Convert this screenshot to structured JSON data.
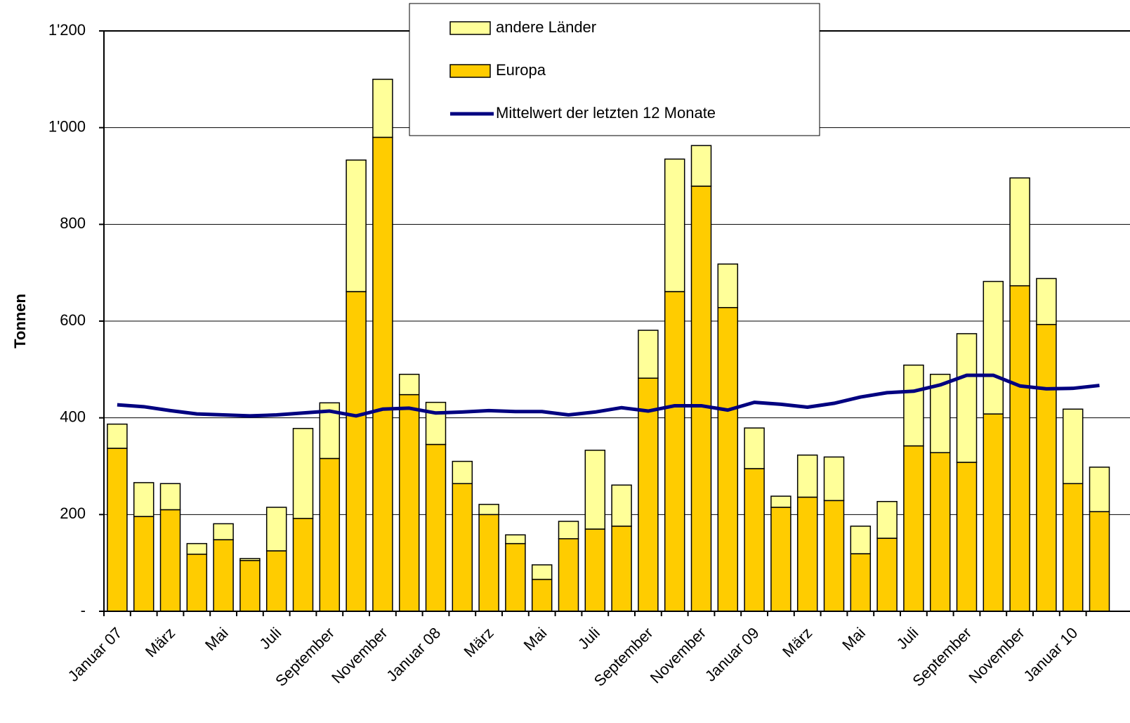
{
  "chart_data": {
    "type": "bar",
    "stacked": true,
    "y_label": "Tonnen",
    "categories": [
      "Januar 07",
      null,
      "März",
      null,
      "Mai",
      null,
      "Juli",
      null,
      "September",
      null,
      "November",
      null,
      "Januar 08",
      null,
      "März",
      null,
      "Mai",
      null,
      "Juli",
      null,
      "September",
      null,
      "November",
      null,
      "Januar 09",
      null,
      "März",
      null,
      "Mai",
      null,
      "Juli",
      null,
      "September",
      null,
      "November",
      null,
      "Januar 10",
      null
    ],
    "series": [
      {
        "name": "Europa",
        "color": "#ffcc00",
        "values": [
          337,
          196,
          210,
          118,
          148,
          105,
          125,
          192,
          316,
          661,
          980,
          448,
          345,
          264,
          200,
          140,
          66,
          150,
          170,
          176,
          482,
          661,
          879,
          628,
          295,
          215,
          236,
          229,
          119,
          151,
          342,
          328,
          308,
          408,
          673,
          593,
          264,
          206
        ]
      },
      {
        "name": "andere Länder",
        "color": "#ffff99",
        "values": [
          50,
          70,
          54,
          22,
          33,
          4,
          90,
          186,
          115,
          272,
          120,
          42,
          87,
          46,
          21,
          18,
          30,
          36,
          163,
          85,
          99,
          274,
          84,
          90,
          84,
          23,
          87,
          90,
          57,
          76,
          167,
          162,
          266,
          274,
          223,
          95,
          154,
          92
        ]
      },
      {
        "name": "Mittelwert der letzten 12 Monate",
        "type": "line",
        "color": "#000080",
        "values": [
          427,
          423,
          415,
          408,
          406,
          404,
          406,
          410,
          414,
          404,
          418,
          420,
          410,
          412,
          415,
          413,
          413,
          406,
          412,
          421,
          414,
          425,
          425,
          416,
          432,
          428,
          422,
          430,
          443,
          452,
          455,
          468,
          488,
          488,
          466,
          460,
          461,
          467
        ]
      }
    ],
    "ylim": [
      0,
      1200
    ],
    "yticks": [
      {
        "value": 0,
        "label": "-"
      },
      200,
      400,
      600,
      800,
      {
        "value": 1000,
        "label": "1'000"
      },
      {
        "value": 1200,
        "label": "1'200"
      }
    ],
    "grid": true
  }
}
